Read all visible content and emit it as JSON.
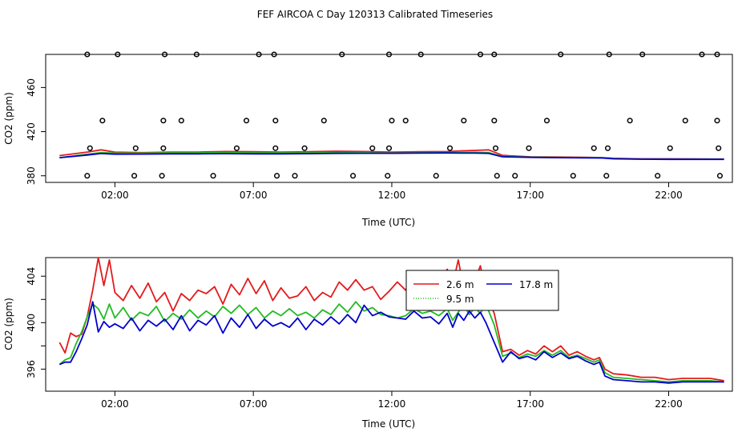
{
  "figure": {
    "title": "FEF AIRCOA C  Day 120313  Calibrated Timeseries"
  },
  "chart_data": [
    {
      "type": "line",
      "xlabel": "Time (UTC)",
      "ylabel": "CO2 (ppm)",
      "xlim": [
        -0.5,
        24.3
      ],
      "ylim": [
        374,
        490
      ],
      "x_ticks": [
        2,
        7,
        12,
        17,
        22
      ],
      "x_tick_labels": [
        "02:00",
        "07:00",
        "12:00",
        "17:00",
        "22:00"
      ],
      "y_ticks": [
        380,
        420,
        460
      ],
      "y_tick_labels": [
        "380",
        "420",
        "460"
      ],
      "calibration_points": {
        "marker": "open-circle",
        "x": [
          1.0,
          2.1,
          3.8,
          4.95,
          7.2,
          7.75,
          10.2,
          11.9,
          13.05,
          15.2,
          15.7,
          18.1,
          19.85,
          21.05,
          23.2,
          23.75,
          1.55,
          3.75,
          4.4,
          6.75,
          7.8,
          9.55,
          12.0,
          12.5,
          14.6,
          15.7,
          17.6,
          20.6,
          22.6,
          23.75,
          1.1,
          2.75,
          3.75,
          6.4,
          7.8,
          8.85,
          11.3,
          11.9,
          14.1,
          15.75,
          16.95,
          19.3,
          19.8,
          22.05,
          23.8,
          1.0,
          2.7,
          3.7,
          5.55,
          7.85,
          8.5,
          10.6,
          11.85,
          13.6,
          15.8,
          16.45,
          18.55,
          19.75,
          21.6,
          23.85
        ],
        "y": [
          490,
          490,
          490,
          490,
          490,
          490,
          490,
          490,
          490,
          490,
          490,
          490,
          490,
          490,
          490,
          490,
          430,
          430,
          430,
          430,
          430,
          430,
          430,
          430,
          430,
          430,
          430,
          430,
          430,
          430,
          405,
          405,
          405,
          405,
          405,
          405,
          405,
          405,
          405,
          405,
          405,
          405,
          405,
          405,
          405,
          380,
          380,
          380,
          380,
          380,
          380,
          380,
          380,
          380,
          380,
          380,
          380,
          380,
          380,
          380
        ]
      },
      "series": [
        {
          "color": "#e41a1c",
          "x": [
            0,
            1,
            1.5,
            2,
            3,
            4,
            5,
            6,
            7,
            8,
            9,
            10,
            11,
            12,
            13,
            14,
            14.5,
            15,
            15.5,
            16,
            17,
            18,
            19,
            19.6,
            20,
            21,
            22,
            23,
            24
          ],
          "y": [
            398.3,
            401.5,
            403.5,
            401.5,
            401.0,
            401.5,
            401.5,
            402.0,
            401.8,
            401.5,
            401.8,
            402.3,
            402.0,
            401.5,
            401.8,
            402.0,
            402.5,
            403.0,
            403.5,
            398.5,
            397.2,
            397.0,
            396.7,
            396.5,
            395.9,
            395.4,
            395.4,
            395.3,
            395.2
          ]
        },
        {
          "color": "#22bb22",
          "x": [
            0,
            1,
            1.5,
            2,
            3,
            4,
            5,
            6,
            7,
            8,
            9,
            10,
            11,
            12,
            13,
            14,
            14.5,
            15,
            15.5,
            16,
            17,
            18,
            19,
            19.6,
            20,
            21,
            22,
            23,
            24
          ],
          "y": [
            396.4,
            399.5,
            401.0,
            400.5,
            400.5,
            400.8,
            400.8,
            401.0,
            400.8,
            400.8,
            400.8,
            401.0,
            400.8,
            400.6,
            400.8,
            401.0,
            401.0,
            401.3,
            401.0,
            397.5,
            396.9,
            396.6,
            396.5,
            396.3,
            395.6,
            395.1,
            395.0,
            395.0,
            395.0
          ]
        },
        {
          "color": "#0000cc",
          "x": [
            0,
            1,
            1.5,
            2,
            3,
            4,
            5,
            6,
            7,
            8,
            9,
            10,
            11,
            12,
            13,
            14,
            14.5,
            15,
            15.5,
            16,
            17,
            18,
            19,
            19.6,
            20,
            21,
            22,
            23,
            24
          ],
          "y": [
            396.4,
            398.8,
            400.2,
            399.6,
            399.7,
            399.9,
            399.9,
            400.0,
            399.9,
            399.9,
            400.0,
            400.3,
            400.4,
            400.4,
            400.5,
            400.7,
            400.5,
            400.5,
            400.3,
            397.2,
            396.7,
            396.4,
            396.2,
            396.1,
            395.4,
            395.0,
            394.9,
            394.9,
            394.9
          ]
        }
      ]
    },
    {
      "type": "line",
      "xlabel": "Time (UTC)",
      "ylabel": "CO2 (ppm)",
      "xlim": [
        -0.5,
        24.3
      ],
      "ylim": [
        394.1,
        405.6
      ],
      "x_ticks": [
        2,
        7,
        12,
        17,
        22
      ],
      "x_tick_labels": [
        "02:00",
        "07:00",
        "12:00",
        "17:00",
        "22:00"
      ],
      "y_ticks": [
        396,
        398,
        400,
        402,
        404
      ],
      "y_tick_labels": [
        "396",
        "",
        "400",
        "",
        "404"
      ],
      "legend": {
        "position": "top-center",
        "entries": [
          {
            "label": "2.6 m",
            "color": "#e41a1c",
            "style": "solid"
          },
          {
            "label": "17.8 m",
            "color": "#0000cc",
            "style": "solid"
          },
          {
            "label": "9.5 m",
            "color": "#22bb22",
            "style": "dotted"
          }
        ]
      },
      "series": [
        {
          "name": "2.6 m",
          "color": "#e41a1c",
          "x": [
            0,
            0.2,
            0.4,
            0.6,
            0.8,
            1.0,
            1.2,
            1.4,
            1.6,
            1.8,
            2.0,
            2.3,
            2.6,
            2.9,
            3.2,
            3.5,
            3.8,
            4.1,
            4.4,
            4.7,
            5.0,
            5.3,
            5.6,
            5.9,
            6.2,
            6.5,
            6.8,
            7.1,
            7.4,
            7.7,
            8.0,
            8.3,
            8.6,
            8.9,
            9.2,
            9.5,
            9.8,
            10.1,
            10.4,
            10.7,
            11.0,
            11.3,
            11.6,
            11.9,
            12.2,
            12.5,
            12.8,
            13.1,
            13.4,
            13.7,
            14.0,
            14.2,
            14.4,
            14.6,
            14.8,
            15.0,
            15.2,
            15.4,
            15.7,
            16.0,
            16.3,
            16.6,
            16.9,
            17.2,
            17.5,
            17.8,
            18.1,
            18.4,
            18.7,
            19.0,
            19.3,
            19.5,
            19.7,
            20.0,
            20.5,
            21.0,
            21.5,
            22.0,
            22.5,
            23.0,
            23.5,
            24.0
          ],
          "y": [
            398.3,
            397.4,
            399.1,
            398.8,
            399.0,
            400.5,
            402.8,
            405.6,
            403.2,
            405.4,
            402.6,
            401.9,
            403.2,
            402.1,
            403.4,
            401.8,
            402.6,
            401.0,
            402.5,
            401.9,
            402.8,
            402.5,
            403.1,
            401.6,
            403.3,
            402.4,
            403.8,
            402.5,
            403.6,
            401.9,
            403.0,
            402.1,
            402.3,
            403.1,
            401.9,
            402.6,
            402.2,
            403.5,
            402.8,
            403.7,
            402.8,
            403.1,
            402.0,
            402.7,
            403.5,
            402.8,
            404.1,
            402.9,
            404.2,
            403.0,
            404.6,
            403.3,
            405.4,
            403.0,
            402.4,
            403.6,
            404.9,
            402.5,
            400.8,
            397.5,
            397.7,
            397.2,
            397.6,
            397.3,
            398.0,
            397.5,
            398.0,
            397.2,
            397.5,
            397.1,
            396.8,
            397.0,
            396.0,
            395.6,
            395.5,
            395.3,
            395.3,
            395.1,
            395.2,
            395.2,
            395.2,
            395.0
          ]
        },
        {
          "name": "9.5 m",
          "color": "#22bb22",
          "x": [
            0,
            0.2,
            0.4,
            0.6,
            0.8,
            1.0,
            1.2,
            1.4,
            1.6,
            1.8,
            2.0,
            2.3,
            2.6,
            2.9,
            3.2,
            3.5,
            3.8,
            4.1,
            4.4,
            4.7,
            5.0,
            5.3,
            5.6,
            5.9,
            6.2,
            6.5,
            6.8,
            7.1,
            7.4,
            7.7,
            8.0,
            8.3,
            8.6,
            8.9,
            9.2,
            9.5,
            9.8,
            10.1,
            10.4,
            10.7,
            11.0,
            11.3,
            11.6,
            11.9,
            12.2,
            12.5,
            12.8,
            13.1,
            13.4,
            13.7,
            14.0,
            14.2,
            14.4,
            14.6,
            14.8,
            15.0,
            15.2,
            15.4,
            15.7,
            16.0,
            16.3,
            16.6,
            16.9,
            17.2,
            17.5,
            17.8,
            18.1,
            18.4,
            18.7,
            19.0,
            19.3,
            19.5,
            19.7,
            20.0,
            20.5,
            21.0,
            21.5,
            22.0,
            22.5,
            23.0,
            23.5,
            24.0
          ],
          "y": [
            396.4,
            396.8,
            397.0,
            398.2,
            399.2,
            400.5,
            401.6,
            401.2,
            400.3,
            401.6,
            400.4,
            401.3,
            400.2,
            400.9,
            400.6,
            401.4,
            400.1,
            400.8,
            400.3,
            401.1,
            400.4,
            401.0,
            400.5,
            401.4,
            400.8,
            401.5,
            400.7,
            401.3,
            400.4,
            401.0,
            400.6,
            401.2,
            400.6,
            400.9,
            400.4,
            401.1,
            400.7,
            401.6,
            400.9,
            401.8,
            401.0,
            401.3,
            400.7,
            400.6,
            400.4,
            400.6,
            401.2,
            400.8,
            401.0,
            400.6,
            401.2,
            400.2,
            400.9,
            401.5,
            400.7,
            401.3,
            400.8,
            401.6,
            399.8,
            397.1,
            397.4,
            397.0,
            397.3,
            397.1,
            397.6,
            397.2,
            397.6,
            397.0,
            397.2,
            396.9,
            396.6,
            396.8,
            395.7,
            395.3,
            395.2,
            395.1,
            395.0,
            394.9,
            395.0,
            395.0,
            395.0,
            394.9
          ]
        },
        {
          "name": "17.8 m",
          "color": "#0000cc",
          "x": [
            0,
            0.2,
            0.4,
            0.6,
            0.8,
            1.0,
            1.2,
            1.4,
            1.6,
            1.8,
            2.0,
            2.3,
            2.6,
            2.9,
            3.2,
            3.5,
            3.8,
            4.1,
            4.4,
            4.7,
            5.0,
            5.3,
            5.6,
            5.9,
            6.2,
            6.5,
            6.8,
            7.1,
            7.4,
            7.7,
            8.0,
            8.3,
            8.6,
            8.9,
            9.2,
            9.5,
            9.8,
            10.1,
            10.4,
            10.7,
            11.0,
            11.3,
            11.6,
            11.9,
            12.2,
            12.5,
            12.8,
            13.1,
            13.4,
            13.7,
            14.0,
            14.2,
            14.4,
            14.6,
            14.8,
            15.0,
            15.2,
            15.4,
            15.7,
            16.0,
            16.3,
            16.6,
            16.9,
            17.2,
            17.5,
            17.8,
            18.1,
            18.4,
            18.7,
            19.0,
            19.3,
            19.5,
            19.7,
            20.0,
            20.5,
            21.0,
            21.5,
            22.0,
            22.5,
            23.0,
            23.5,
            24.0
          ],
          "y": [
            396.4,
            396.6,
            396.6,
            397.5,
            398.6,
            399.8,
            401.8,
            399.2,
            400.1,
            399.6,
            399.9,
            399.5,
            400.4,
            399.3,
            400.2,
            399.7,
            400.3,
            399.4,
            400.6,
            399.3,
            400.2,
            399.8,
            400.6,
            399.1,
            400.4,
            399.6,
            400.7,
            399.5,
            400.3,
            399.7,
            400.0,
            399.6,
            400.4,
            399.4,
            400.3,
            399.8,
            400.5,
            399.9,
            400.7,
            400.0,
            401.5,
            400.6,
            400.9,
            400.5,
            400.4,
            400.3,
            401.0,
            400.4,
            400.5,
            399.9,
            400.8,
            399.6,
            400.8,
            400.2,
            401.0,
            400.4,
            400.9,
            400.0,
            398.3,
            396.6,
            397.5,
            396.9,
            397.1,
            396.8,
            397.5,
            397.0,
            397.4,
            396.9,
            397.1,
            396.7,
            396.4,
            396.6,
            395.4,
            395.1,
            395.0,
            394.9,
            394.9,
            394.8,
            394.9,
            394.9,
            394.9,
            394.9
          ]
        }
      ]
    }
  ]
}
